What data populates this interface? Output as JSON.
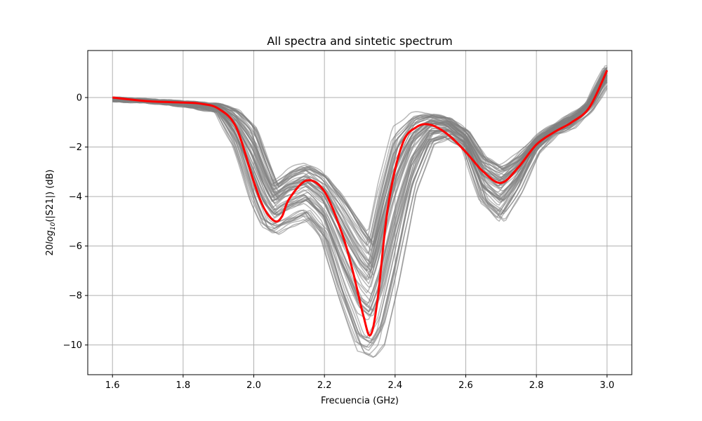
{
  "chart_data": {
    "type": "line",
    "title": "All spectra and sintetic spectrum",
    "xlabel": "Frecuencia (GHz)",
    "ylabel_parts": {
      "pre": "20",
      "log": "log",
      "sub": "10",
      "post": "(|S21|) (dB)"
    },
    "xlim": [
      1.53,
      3.07
    ],
    "ylim": [
      -11.2,
      1.9
    ],
    "xticks": [
      1.6,
      1.8,
      2.0,
      2.2,
      2.4,
      2.6,
      2.8,
      3.0
    ],
    "xtick_labels": [
      "1.6",
      "1.8",
      "2.0",
      "2.2",
      "2.4",
      "2.6",
      "2.8",
      "3.0"
    ],
    "yticks": [
      -10,
      -8,
      -6,
      -4,
      -2,
      0
    ],
    "ytick_labels": [
      "−10",
      "−8",
      "−6",
      "−4",
      "−2",
      "0"
    ],
    "grid": true,
    "colors": {
      "sample": "#808080",
      "synthetic": "#ff0000",
      "grid": "#b0b0b0"
    },
    "sample_spectra": {
      "count": 60,
      "x": [
        1.6,
        1.7,
        1.8,
        1.9,
        1.95,
        2.0,
        2.03,
        2.06,
        2.1,
        2.15,
        2.2,
        2.25,
        2.3,
        2.33,
        2.36,
        2.4,
        2.45,
        2.5,
        2.55,
        2.6,
        2.65,
        2.7,
        2.75,
        2.8,
        2.85,
        2.9,
        2.95,
        3.0
      ],
      "y_range_min": [
        -0.15,
        -0.2,
        -0.35,
        -0.6,
        -2.0,
        -4.3,
        -5.3,
        -5.5,
        -5.2,
        -4.9,
        -5.8,
        -8.3,
        -10.3,
        -10.5,
        -10.0,
        -7.5,
        -3.8,
        -1.9,
        -1.6,
        -2.1,
        -4.3,
        -5.0,
        -3.8,
        -2.2,
        -1.5,
        -1.2,
        -0.5,
        0.6
      ],
      "y_range_max": [
        0.0,
        -0.08,
        -0.15,
        -0.25,
        -0.4,
        -1.0,
        -2.2,
        -3.4,
        -2.9,
        -2.6,
        -3.0,
        -3.8,
        -4.8,
        -5.5,
        -3.3,
        -1.2,
        -0.6,
        -0.6,
        -0.8,
        -1.3,
        -2.3,
        -2.7,
        -2.3,
        -1.6,
        -1.1,
        -0.7,
        -0.2,
        1.3
      ]
    },
    "series": [
      {
        "x": [
          1.6,
          1.7,
          1.8,
          1.85,
          1.9,
          1.95,
          2.0,
          2.03,
          2.06,
          2.08,
          2.1,
          2.15,
          2.2,
          2.25,
          2.28,
          2.31,
          2.33,
          2.35,
          2.38,
          2.42,
          2.46,
          2.5,
          2.55,
          2.6,
          2.65,
          2.7,
          2.75,
          2.8,
          2.85,
          2.9,
          2.95,
          3.0
        ],
        "y": [
          0.0,
          -0.15,
          -0.2,
          -0.25,
          -0.45,
          -1.2,
          -3.4,
          -4.5,
          -5.0,
          -4.8,
          -4.1,
          -3.35,
          -3.8,
          -5.5,
          -7.0,
          -8.8,
          -9.6,
          -8.2,
          -4.4,
          -1.9,
          -1.2,
          -1.1,
          -1.5,
          -2.2,
          -3.0,
          -3.45,
          -2.8,
          -1.9,
          -1.4,
          -1.0,
          -0.4,
          1.1
        ]
      }
    ]
  }
}
